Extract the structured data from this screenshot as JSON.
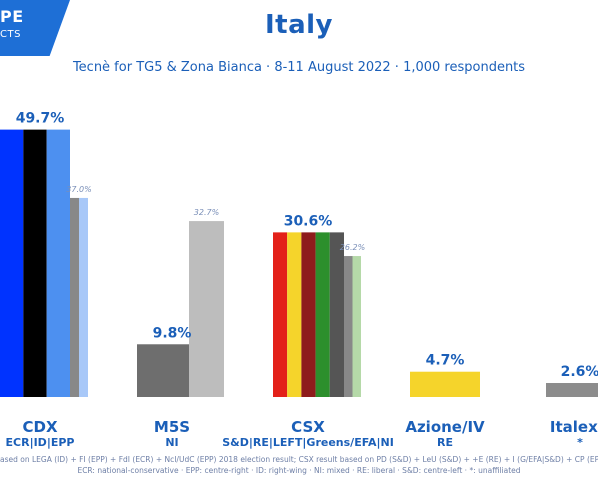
{
  "logo": {
    "line1": "PE",
    "line2": "CTS"
  },
  "footnotes": {
    "line1": "ased on LEGA (ID) + FI (EPP) + FdI (ECR) + NcI/UdC (EPP) 2018 election result; CSX result based on PD (S&D) + LeU (S&D) + +E (RE) + I (G/EFA|S&D) + CP (EPP|S",
    "line2": "ECR: national-conservative · EPP: centre-right · ID: right-wing · NI: mixed · RE: liberal · S&D: centre-left · *: unaffiliated"
  },
  "colors": {
    "text": "#1b5fb8",
    "compare_label": "#7a8fb8",
    "cdx_blue": "#0033ff",
    "cdx_black": "#000000",
    "cdx_light_blue": "#4d90f0",
    "compare_bar": "#888888",
    "compare_light_blue": "#a8c8f8",
    "m5s_bar": "#6e6e6e",
    "m5s_compare": "#bdbdbd",
    "csx_red": "#e32119",
    "csx_yellow": "#f5d42b",
    "csx_darkred": "#8e1c1c",
    "csx_green": "#2c8f2c",
    "csx_darkgray": "#555555",
    "csx_compare_light": "#b5d9a8",
    "azione": "#f5d42b",
    "italexit": "#8c8c8c"
  },
  "chart_data": {
    "type": "bar",
    "title": "Italy",
    "subtitle": "Tecnè for TG5 & Zona Bianca · 8-11 August 2022 · 1,000 respondents",
    "ylim": [
      0,
      50
    ],
    "categories": [
      {
        "name": "CDX",
        "group": "ECR|ID|EPP",
        "value": 49.7,
        "value_label": "49.7%",
        "previous": 37.0,
        "previous_label": "37.0%"
      },
      {
        "name": "M5S",
        "group": "NI",
        "value": 9.8,
        "value_label": "9.8%",
        "previous": 32.7,
        "previous_label": "32.7%"
      },
      {
        "name": "CSX",
        "group": "S&D|RE|LEFT|Greens/EFA|NI",
        "value": 30.6,
        "value_label": "30.6%",
        "previous": 26.2,
        "previous_label": "26.2%"
      },
      {
        "name": "Azione/IV",
        "group": "RE",
        "value": 4.7,
        "value_label": "4.7%"
      },
      {
        "name": "Italexit",
        "group": "*",
        "value": 2.6,
        "value_label": "2.6%"
      }
    ]
  }
}
